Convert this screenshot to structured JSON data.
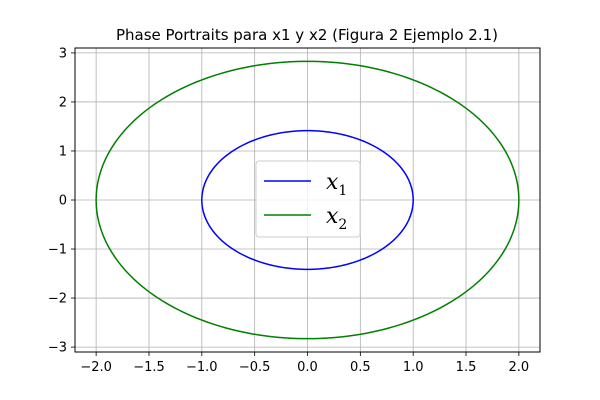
{
  "chart_data": {
    "type": "line",
    "title": "Phase Portraits para x1 y x2 (Figura 2 Ejemplo 2.1)",
    "xlabel": "",
    "ylabel": "",
    "xlim": [
      -2.2,
      2.2
    ],
    "ylim": [
      -3.1,
      3.1
    ],
    "xticks": [
      -2.0,
      -1.5,
      -1.0,
      -0.5,
      0.0,
      0.5,
      1.0,
      1.5,
      2.0
    ],
    "xtick_labels": [
      "−2.0",
      "−1.5",
      "−1.0",
      "−0.5",
      "0.0",
      "0.5",
      "1.0",
      "1.5",
      "2.0"
    ],
    "yticks": [
      -3,
      -2,
      -1,
      0,
      1,
      2,
      3
    ],
    "ytick_labels": [
      "−3",
      "−2",
      "−1",
      "0",
      "1",
      "2",
      "3"
    ],
    "grid": true,
    "legend_position": "center",
    "series": [
      {
        "name": "x1",
        "legend_base": "x",
        "legend_sub": "1",
        "color": "#0000ff",
        "shape": "ellipse",
        "center": [
          0,
          0
        ],
        "x_semi_axis": 1.0,
        "y_semi_axis": 1.4142
      },
      {
        "name": "x2",
        "legend_base": "x",
        "legend_sub": "2",
        "color": "#008000",
        "shape": "ellipse",
        "center": [
          0,
          0
        ],
        "x_semi_axis": 2.0,
        "y_semi_axis": 2.8284
      }
    ]
  }
}
